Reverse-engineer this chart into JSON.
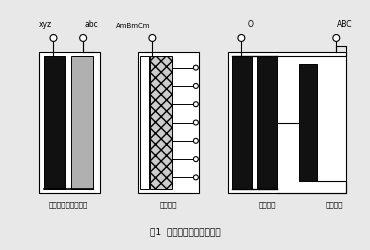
{
  "title": "图1  变压器线圈内部连接图",
  "label_xyz": "xyz",
  "label_abc": "abc",
  "label_AmBmCm": "AmBmCm",
  "label_O": "O",
  "label_ABC": "ABC",
  "caption_low": "低压及低压励磁绕组",
  "caption_mid": "调压绕组",
  "caption_common": "公共绕组",
  "caption_series": "串联绕组",
  "bg_color": "#e8e8e8",
  "dark_color": "#111111",
  "gray_color": "#b0b0b0",
  "white_color": "#ffffff",
  "line_color": "#000000"
}
